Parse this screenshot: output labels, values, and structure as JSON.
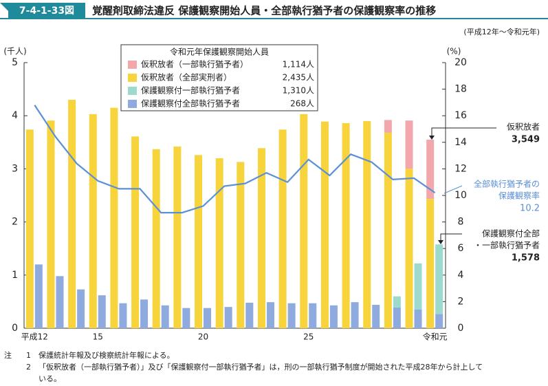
{
  "header": {
    "figure_no": "7-4-1-33図",
    "title": "覚醒剤取締法違反 保護観察開始人員・全部執行猶予者の保護観察率の推移"
  },
  "chart_data": {
    "type": "bar",
    "subtitle": "(平成12年～令和元年)",
    "y_label": "(千人)",
    "y2_label": "(%)",
    "legend_title": "令和元年保護観察開始人員",
    "categories": [
      "平成12",
      null,
      null,
      "15",
      null,
      null,
      null,
      null,
      "20",
      null,
      null,
      null,
      null,
      "25",
      null,
      null,
      null,
      null,
      null,
      "令和元"
    ],
    "ylim": [
      0,
      5
    ],
    "yticks": [
      0,
      1,
      2,
      3,
      4,
      5
    ],
    "y2lim": [
      0,
      20
    ],
    "y2ticks": [
      0,
      2,
      4,
      6,
      8,
      10,
      12,
      14,
      16,
      18,
      20
    ],
    "series": [
      {
        "name": "仮釈放者（全部実刑者）",
        "color": "#f7d43c",
        "stack": "a",
        "legend_value": "2,435人",
        "values": [
          3.74,
          3.91,
          4.3,
          4.03,
          4.15,
          3.61,
          3.37,
          3.42,
          3.26,
          3.2,
          3.13,
          3.39,
          3.74,
          4.03,
          3.89,
          3.86,
          3.9,
          3.68,
          3.0,
          2.435
        ]
      },
      {
        "name": "仮釈放者（一部執行猶予者）",
        "color": "#f2a7ad",
        "stack": "a",
        "legend_value": "1,114人",
        "values": [
          null,
          null,
          null,
          null,
          null,
          null,
          null,
          null,
          null,
          null,
          null,
          null,
          null,
          null,
          null,
          null,
          null,
          0.24,
          0.91,
          1.114
        ]
      },
      {
        "name": "保護観察付全部執行猶予者",
        "color": "#8eaade",
        "stack": "b",
        "legend_value": "268人",
        "values": [
          1.2,
          0.98,
          0.73,
          0.62,
          0.47,
          0.54,
          0.43,
          0.38,
          0.38,
          0.4,
          0.48,
          0.49,
          0.47,
          0.47,
          0.43,
          0.49,
          0.44,
          0.39,
          0.35,
          0.268
        ]
      },
      {
        "name": "保護観察付一部執行猶予者",
        "color": "#9cdacd",
        "stack": "b",
        "legend_value": "1,310人",
        "values": [
          null,
          null,
          null,
          null,
          null,
          null,
          null,
          null,
          null,
          null,
          null,
          null,
          null,
          null,
          null,
          null,
          null,
          0.21,
          0.87,
          1.31
        ]
      },
      {
        "type": "line",
        "axis": "y2",
        "color": "#5b8fd6",
        "values": [
          16.8,
          14.4,
          12.4,
          11.1,
          10.5,
          10.5,
          8.7,
          8.7,
          9.2,
          10.7,
          10.9,
          11.7,
          11.0,
          12.7,
          11.5,
          13.1,
          12.5,
          11.2,
          11.3,
          10.2
        ]
      }
    ],
    "annotations": [
      {
        "lines": [
          "仮釈放者"
        ],
        "value": "3,549"
      },
      {
        "lines": [
          "全部執行猶予者の",
          "保護観察率"
        ],
        "value": "10.2"
      },
      {
        "lines": [
          "保護観察付全部",
          "・一部執行猶予者"
        ],
        "value": "1,578"
      }
    ]
  },
  "notes": {
    "label": "注",
    "items": [
      {
        "num": "1",
        "lines": [
          "保護統計年報及び検察統計年報による。"
        ]
      },
      {
        "num": "2",
        "lines": [
          "「仮釈放者（一部執行猶予者）」及び「保護観察付一部執行猶予者」は，刑の一部執行猶予制度が開始された平成28年から計上して",
          "いる。"
        ]
      }
    ]
  }
}
